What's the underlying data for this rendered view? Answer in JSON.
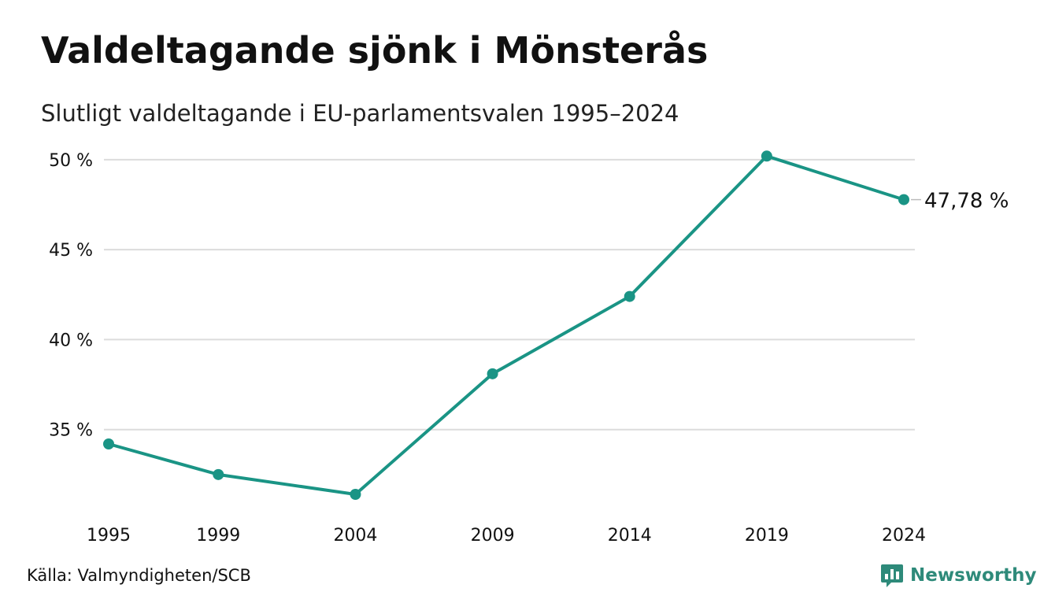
{
  "header": {
    "title": "Valdeltagande sjönk i Mönsterås",
    "subtitle": "Slutligt valdeltagande i EU-parlamentsvalen 1995–2024"
  },
  "footer": {
    "source": "Källa: Valmyndigheten/SCB",
    "brand": "Newsworthy",
    "brand_icon": "newsworthy-logo-icon"
  },
  "colors": {
    "line": "#1a9485",
    "grid": "#dcdcdc",
    "brand": "#2e8a7a"
  },
  "chart_data": {
    "type": "line",
    "title": "Valdeltagande sjönk i Mönsterås",
    "subtitle": "Slutligt valdeltagande i EU-parlamentsvalen 1995–2024",
    "xlabel": "",
    "ylabel": "",
    "x": [
      1995,
      1999,
      2004,
      2009,
      2014,
      2019,
      2024
    ],
    "x_tick_labels": [
      "1995",
      "1999",
      "2004",
      "2009",
      "2014",
      "2019",
      "2024"
    ],
    "series": [
      {
        "values": [
          34.2,
          32.5,
          31.4,
          38.1,
          42.4,
          50.2,
          47.78
        ]
      }
    ],
    "y_ticks": [
      35,
      40,
      45,
      50
    ],
    "y_tick_labels": [
      "35 %",
      "40 %",
      "45 %",
      "50 %"
    ],
    "ylim": [
      30,
      51
    ],
    "grid": true,
    "legend": "none",
    "end_label": "47,78 %"
  }
}
